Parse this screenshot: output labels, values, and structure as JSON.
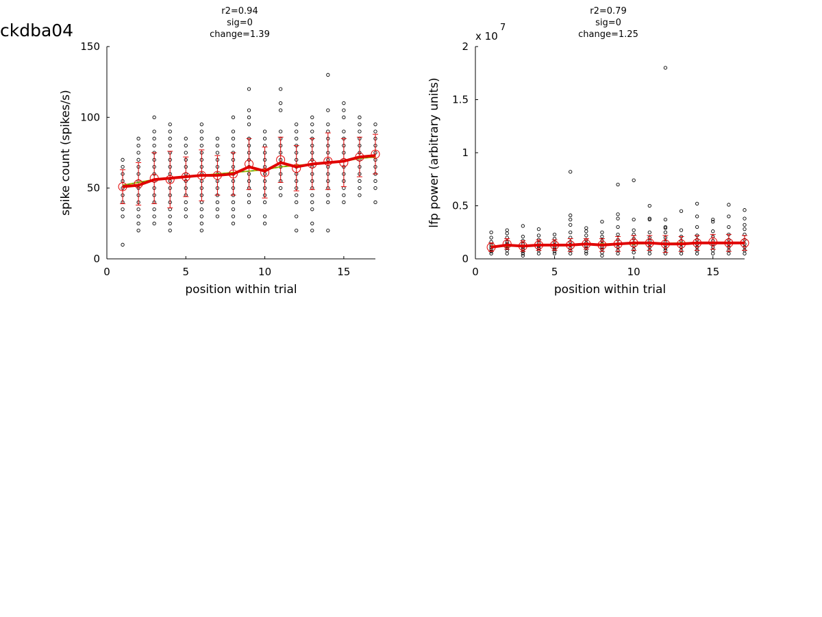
{
  "figure": {
    "title": "ckdba04"
  },
  "chart_data": [
    {
      "type": "scatter",
      "annotations": [
        "r2=0.94",
        "sig=0",
        "change=1.39"
      ],
      "xlabel": "position within trial",
      "ylabel": "spike count (spikes/s)",
      "exponent_label": "",
      "xlim": [
        0,
        17
      ],
      "ylim": [
        0,
        150
      ],
      "xticks": [
        0,
        5,
        10,
        15
      ],
      "xtick_labels": [
        "0",
        "5",
        "10",
        "15"
      ],
      "yticks": [
        0,
        50,
        100,
        150
      ],
      "ytick_labels": [
        "0",
        "50",
        "100",
        "150"
      ],
      "scatter": [
        {
          "x": 1,
          "y": [
            10,
            30,
            35,
            40,
            45,
            50,
            55,
            60,
            65,
            70
          ]
        },
        {
          "x": 2,
          "y": [
            20,
            25,
            30,
            35,
            40,
            45,
            50,
            55,
            60,
            65,
            70,
            75,
            80,
            85
          ]
        },
        {
          "x": 3,
          "y": [
            25,
            30,
            35,
            40,
            45,
            50,
            55,
            60,
            65,
            70,
            75,
            80,
            85,
            90,
            100
          ]
        },
        {
          "x": 4,
          "y": [
            20,
            25,
            30,
            35,
            40,
            45,
            50,
            55,
            60,
            65,
            70,
            75,
            80,
            85,
            90,
            95
          ]
        },
        {
          "x": 5,
          "y": [
            30,
            35,
            40,
            45,
            50,
            55,
            60,
            65,
            70,
            75,
            80,
            85
          ]
        },
        {
          "x": 6,
          "y": [
            20,
            25,
            30,
            35,
            40,
            45,
            50,
            55,
            60,
            65,
            70,
            75,
            80,
            85,
            90,
            95
          ]
        },
        {
          "x": 7,
          "y": [
            30,
            35,
            40,
            45,
            50,
            55,
            60,
            65,
            70,
            75,
            80,
            85
          ]
        },
        {
          "x": 8,
          "y": [
            25,
            30,
            35,
            40,
            45,
            50,
            55,
            60,
            65,
            70,
            75,
            80,
            85,
            90,
            100
          ]
        },
        {
          "x": 9,
          "y": [
            30,
            40,
            45,
            50,
            55,
            60,
            65,
            70,
            75,
            80,
            85,
            95,
            100,
            105,
            120
          ]
        },
        {
          "x": 10,
          "y": [
            25,
            30,
            40,
            45,
            50,
            55,
            60,
            65,
            70,
            75,
            80,
            85,
            90
          ]
        },
        {
          "x": 11,
          "y": [
            45,
            50,
            55,
            60,
            65,
            70,
            75,
            80,
            85,
            90,
            105,
            110,
            120
          ]
        },
        {
          "x": 12,
          "y": [
            20,
            30,
            40,
            45,
            50,
            55,
            60,
            65,
            70,
            75,
            80,
            85,
            90,
            95
          ]
        },
        {
          "x": 13,
          "y": [
            20,
            25,
            35,
            40,
            45,
            50,
            55,
            60,
            65,
            70,
            75,
            80,
            85,
            90,
            95,
            100
          ]
        },
        {
          "x": 14,
          "y": [
            20,
            40,
            45,
            50,
            55,
            60,
            65,
            70,
            75,
            80,
            85,
            90,
            95,
            105,
            130
          ]
        },
        {
          "x": 15,
          "y": [
            40,
            45,
            50,
            55,
            60,
            65,
            70,
            75,
            80,
            85,
            90,
            100,
            105,
            110
          ]
        },
        {
          "x": 16,
          "y": [
            45,
            50,
            55,
            60,
            65,
            70,
            75,
            80,
            85,
            90,
            95,
            100
          ]
        },
        {
          "x": 17,
          "y": [
            40,
            50,
            55,
            60,
            65,
            70,
            75,
            80,
            85,
            90,
            95
          ]
        }
      ],
      "series": [
        {
          "name": "",
          "values_x": [
            1,
            2,
            3,
            4,
            5,
            6,
            7,
            8,
            9,
            10,
            11,
            12,
            13,
            14,
            15,
            16,
            17
          ],
          "mean": [
            51,
            53,
            57,
            56,
            58,
            59,
            59,
            60,
            67,
            61,
            70,
            64,
            67,
            69,
            68,
            72,
            74
          ],
          "error": [
            12,
            15,
            18,
            20,
            14,
            18,
            14,
            15,
            18,
            18,
            16,
            16,
            18,
            20,
            17,
            14,
            14
          ],
          "fit": [
            51,
            52,
            56,
            57,
            58,
            59,
            59,
            60,
            65,
            62,
            68,
            65,
            67,
            68,
            69,
            72,
            73
          ],
          "trend": [
            52,
            54,
            56,
            57,
            58,
            59,
            60,
            61,
            62,
            63,
            65,
            66,
            67,
            68,
            69,
            71,
            72
          ]
        }
      ]
    },
    {
      "type": "scatter",
      "annotations": [
        "r2=0.79",
        "sig=0",
        "change=1.25"
      ],
      "xlabel": "position within trial",
      "ylabel": "lfp power (arbitrary units)",
      "exponent_label": "x 10",
      "exponent_power": "7",
      "xlim": [
        0,
        17
      ],
      "ylim": [
        0,
        2
      ],
      "xticks": [
        0,
        5,
        10,
        15
      ],
      "xtick_labels": [
        "0",
        "5",
        "10",
        "15"
      ],
      "yticks": [
        0,
        0.5,
        1,
        1.5,
        2
      ],
      "ytick_labels": [
        "0",
        "0.5",
        "1",
        "1.5",
        "2"
      ],
      "scatter": [
        {
          "x": 1,
          "y": [
            0.05,
            0.07,
            0.09,
            0.11,
            0.13,
            0.16,
            0.2,
            0.25
          ]
        },
        {
          "x": 2,
          "y": [
            0.05,
            0.08,
            0.1,
            0.12,
            0.14,
            0.16,
            0.2,
            0.24,
            0.27
          ]
        },
        {
          "x": 3,
          "y": [
            0.03,
            0.05,
            0.07,
            0.09,
            0.11,
            0.14,
            0.17,
            0.21,
            0.31
          ]
        },
        {
          "x": 4,
          "y": [
            0.05,
            0.08,
            0.1,
            0.12,
            0.15,
            0.18,
            0.22,
            0.28
          ]
        },
        {
          "x": 5,
          "y": [
            0.05,
            0.07,
            0.09,
            0.11,
            0.13,
            0.16,
            0.19,
            0.23
          ]
        },
        {
          "x": 6,
          "y": [
            0.05,
            0.08,
            0.1,
            0.13,
            0.16,
            0.2,
            0.25,
            0.32,
            0.37,
            0.41,
            0.82
          ]
        },
        {
          "x": 7,
          "y": [
            0.05,
            0.07,
            0.1,
            0.12,
            0.15,
            0.18,
            0.22,
            0.26,
            0.29
          ]
        },
        {
          "x": 8,
          "y": [
            0.03,
            0.06,
            0.09,
            0.11,
            0.14,
            0.17,
            0.21,
            0.25,
            0.35
          ]
        },
        {
          "x": 9,
          "y": [
            0.05,
            0.08,
            0.11,
            0.14,
            0.18,
            0.23,
            0.3,
            0.38,
            0.42,
            0.7
          ]
        },
        {
          "x": 10,
          "y": [
            0.06,
            0.09,
            0.12,
            0.15,
            0.19,
            0.23,
            0.27,
            0.37,
            0.74
          ]
        },
        {
          "x": 11,
          "y": [
            0.05,
            0.08,
            0.11,
            0.14,
            0.17,
            0.2,
            0.25,
            0.37,
            0.38,
            0.5
          ]
        },
        {
          "x": 12,
          "y": [
            0.05,
            0.08,
            0.1,
            0.13,
            0.16,
            0.2,
            0.25,
            0.29,
            0.3,
            0.37,
            1.8
          ]
        },
        {
          "x": 13,
          "y": [
            0.05,
            0.08,
            0.11,
            0.14,
            0.17,
            0.21,
            0.27,
            0.45
          ]
        },
        {
          "x": 14,
          "y": [
            0.05,
            0.08,
            0.11,
            0.14,
            0.18,
            0.22,
            0.3,
            0.4,
            0.52
          ]
        },
        {
          "x": 15,
          "y": [
            0.05,
            0.08,
            0.11,
            0.14,
            0.17,
            0.21,
            0.26,
            0.35,
            0.37
          ]
        },
        {
          "x": 16,
          "y": [
            0.05,
            0.08,
            0.11,
            0.14,
            0.18,
            0.23,
            0.3,
            0.4,
            0.51
          ]
        },
        {
          "x": 17,
          "y": [
            0.05,
            0.08,
            0.11,
            0.14,
            0.18,
            0.23,
            0.28,
            0.32,
            0.38,
            0.46
          ]
        }
      ],
      "series": [
        {
          "name": "",
          "values_x": [
            1,
            2,
            3,
            4,
            5,
            6,
            7,
            8,
            9,
            10,
            11,
            12,
            13,
            14,
            15,
            16,
            17
          ],
          "mean": [
            0.11,
            0.14,
            0.12,
            0.13,
            0.13,
            0.13,
            0.14,
            0.13,
            0.14,
            0.15,
            0.15,
            0.14,
            0.14,
            0.15,
            0.16,
            0.15,
            0.15
          ],
          "error": [
            0.04,
            0.05,
            0.05,
            0.05,
            0.05,
            0.06,
            0.05,
            0.06,
            0.07,
            0.07,
            0.07,
            0.08,
            0.07,
            0.07,
            0.07,
            0.08,
            0.07
          ],
          "fit": [
            0.11,
            0.13,
            0.12,
            0.13,
            0.13,
            0.13,
            0.14,
            0.13,
            0.14,
            0.15,
            0.15,
            0.14,
            0.14,
            0.15,
            0.15,
            0.15,
            0.15
          ],
          "trend": [
            0.12,
            0.12,
            0.125,
            0.13,
            0.13,
            0.135,
            0.135,
            0.14,
            0.14,
            0.14,
            0.145,
            0.145,
            0.15,
            0.15,
            0.15,
            0.155,
            0.155
          ]
        }
      ]
    }
  ]
}
